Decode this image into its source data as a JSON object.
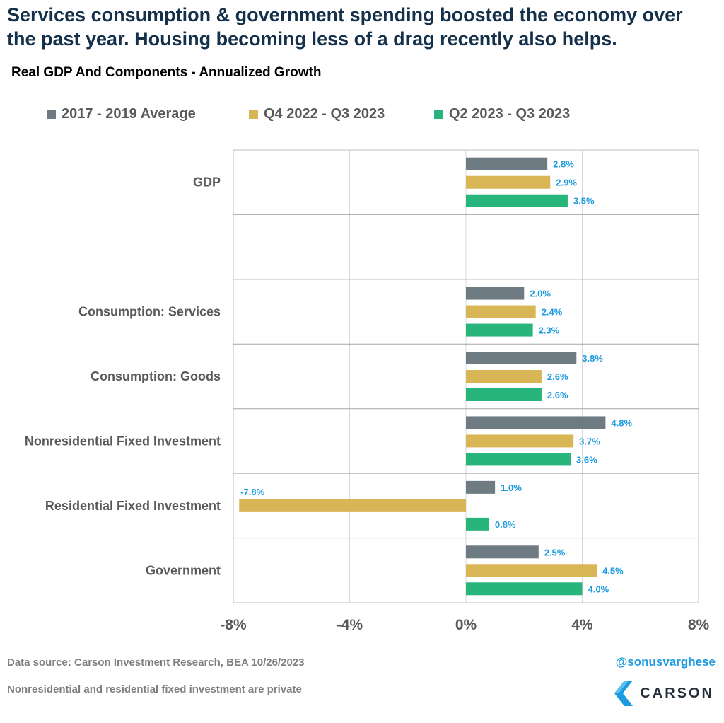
{
  "headline": "Services consumption & government spending boosted the economy over the past year. Housing becoming less of a drag recently also helps.",
  "footer": {
    "source": "Data source: Carson Investment Research, BEA   10/26/2023",
    "note": "Nonresidential and residential fixed investment are private",
    "handle": "@sonusvarghese",
    "logo_text": "CARSON"
  },
  "colors": {
    "avg_2017_2019": "#6f7b83",
    "q4_2022_q3_2023": "#d9b655",
    "q2_2023_q3_2023": "#27b57c",
    "data_label": "#1e9be0",
    "headline": "#14304a"
  },
  "chart_data": {
    "type": "bar",
    "orientation": "horizontal",
    "title": "Real GDP And Components - Annualized Growth",
    "categories": [
      "GDP",
      "",
      "Consumption: Services",
      "Consumption: Goods",
      "Nonresidential Fixed Investment",
      "Residential Fixed Investment",
      "Government"
    ],
    "series": [
      {
        "name": "2017 - 2019 Average",
        "values": [
          2.8,
          null,
          2.0,
          3.8,
          4.8,
          1.0,
          2.5
        ]
      },
      {
        "name": "Q4 2022 - Q3 2023",
        "values": [
          2.9,
          null,
          2.4,
          2.6,
          3.7,
          -7.8,
          4.5
        ]
      },
      {
        "name": "Q2 2023 - Q3 2023",
        "values": [
          3.5,
          null,
          2.3,
          2.6,
          3.6,
          0.8,
          4.0
        ]
      }
    ],
    "data_labels": [
      [
        "2.8%",
        "2.9%",
        "3.5%"
      ],
      [
        "",
        "",
        ""
      ],
      [
        "2.0%",
        "2.4%",
        "2.3%"
      ],
      [
        "3.8%",
        "2.6%",
        "2.6%"
      ],
      [
        "4.8%",
        "3.7%",
        "3.6%"
      ],
      [
        "1.0%",
        "-7.8%",
        "0.8%"
      ],
      [
        "2.5%",
        "4.5%",
        "4.0%"
      ]
    ],
    "xlim": [
      -8,
      8
    ],
    "x_ticks": [
      -8,
      -4,
      0,
      4,
      8
    ],
    "x_tick_labels": [
      "-8%",
      "-4%",
      "0%",
      "4%",
      "8%"
    ],
    "xlabel": "",
    "ylabel": "",
    "grid": true,
    "legend_position": "top"
  }
}
